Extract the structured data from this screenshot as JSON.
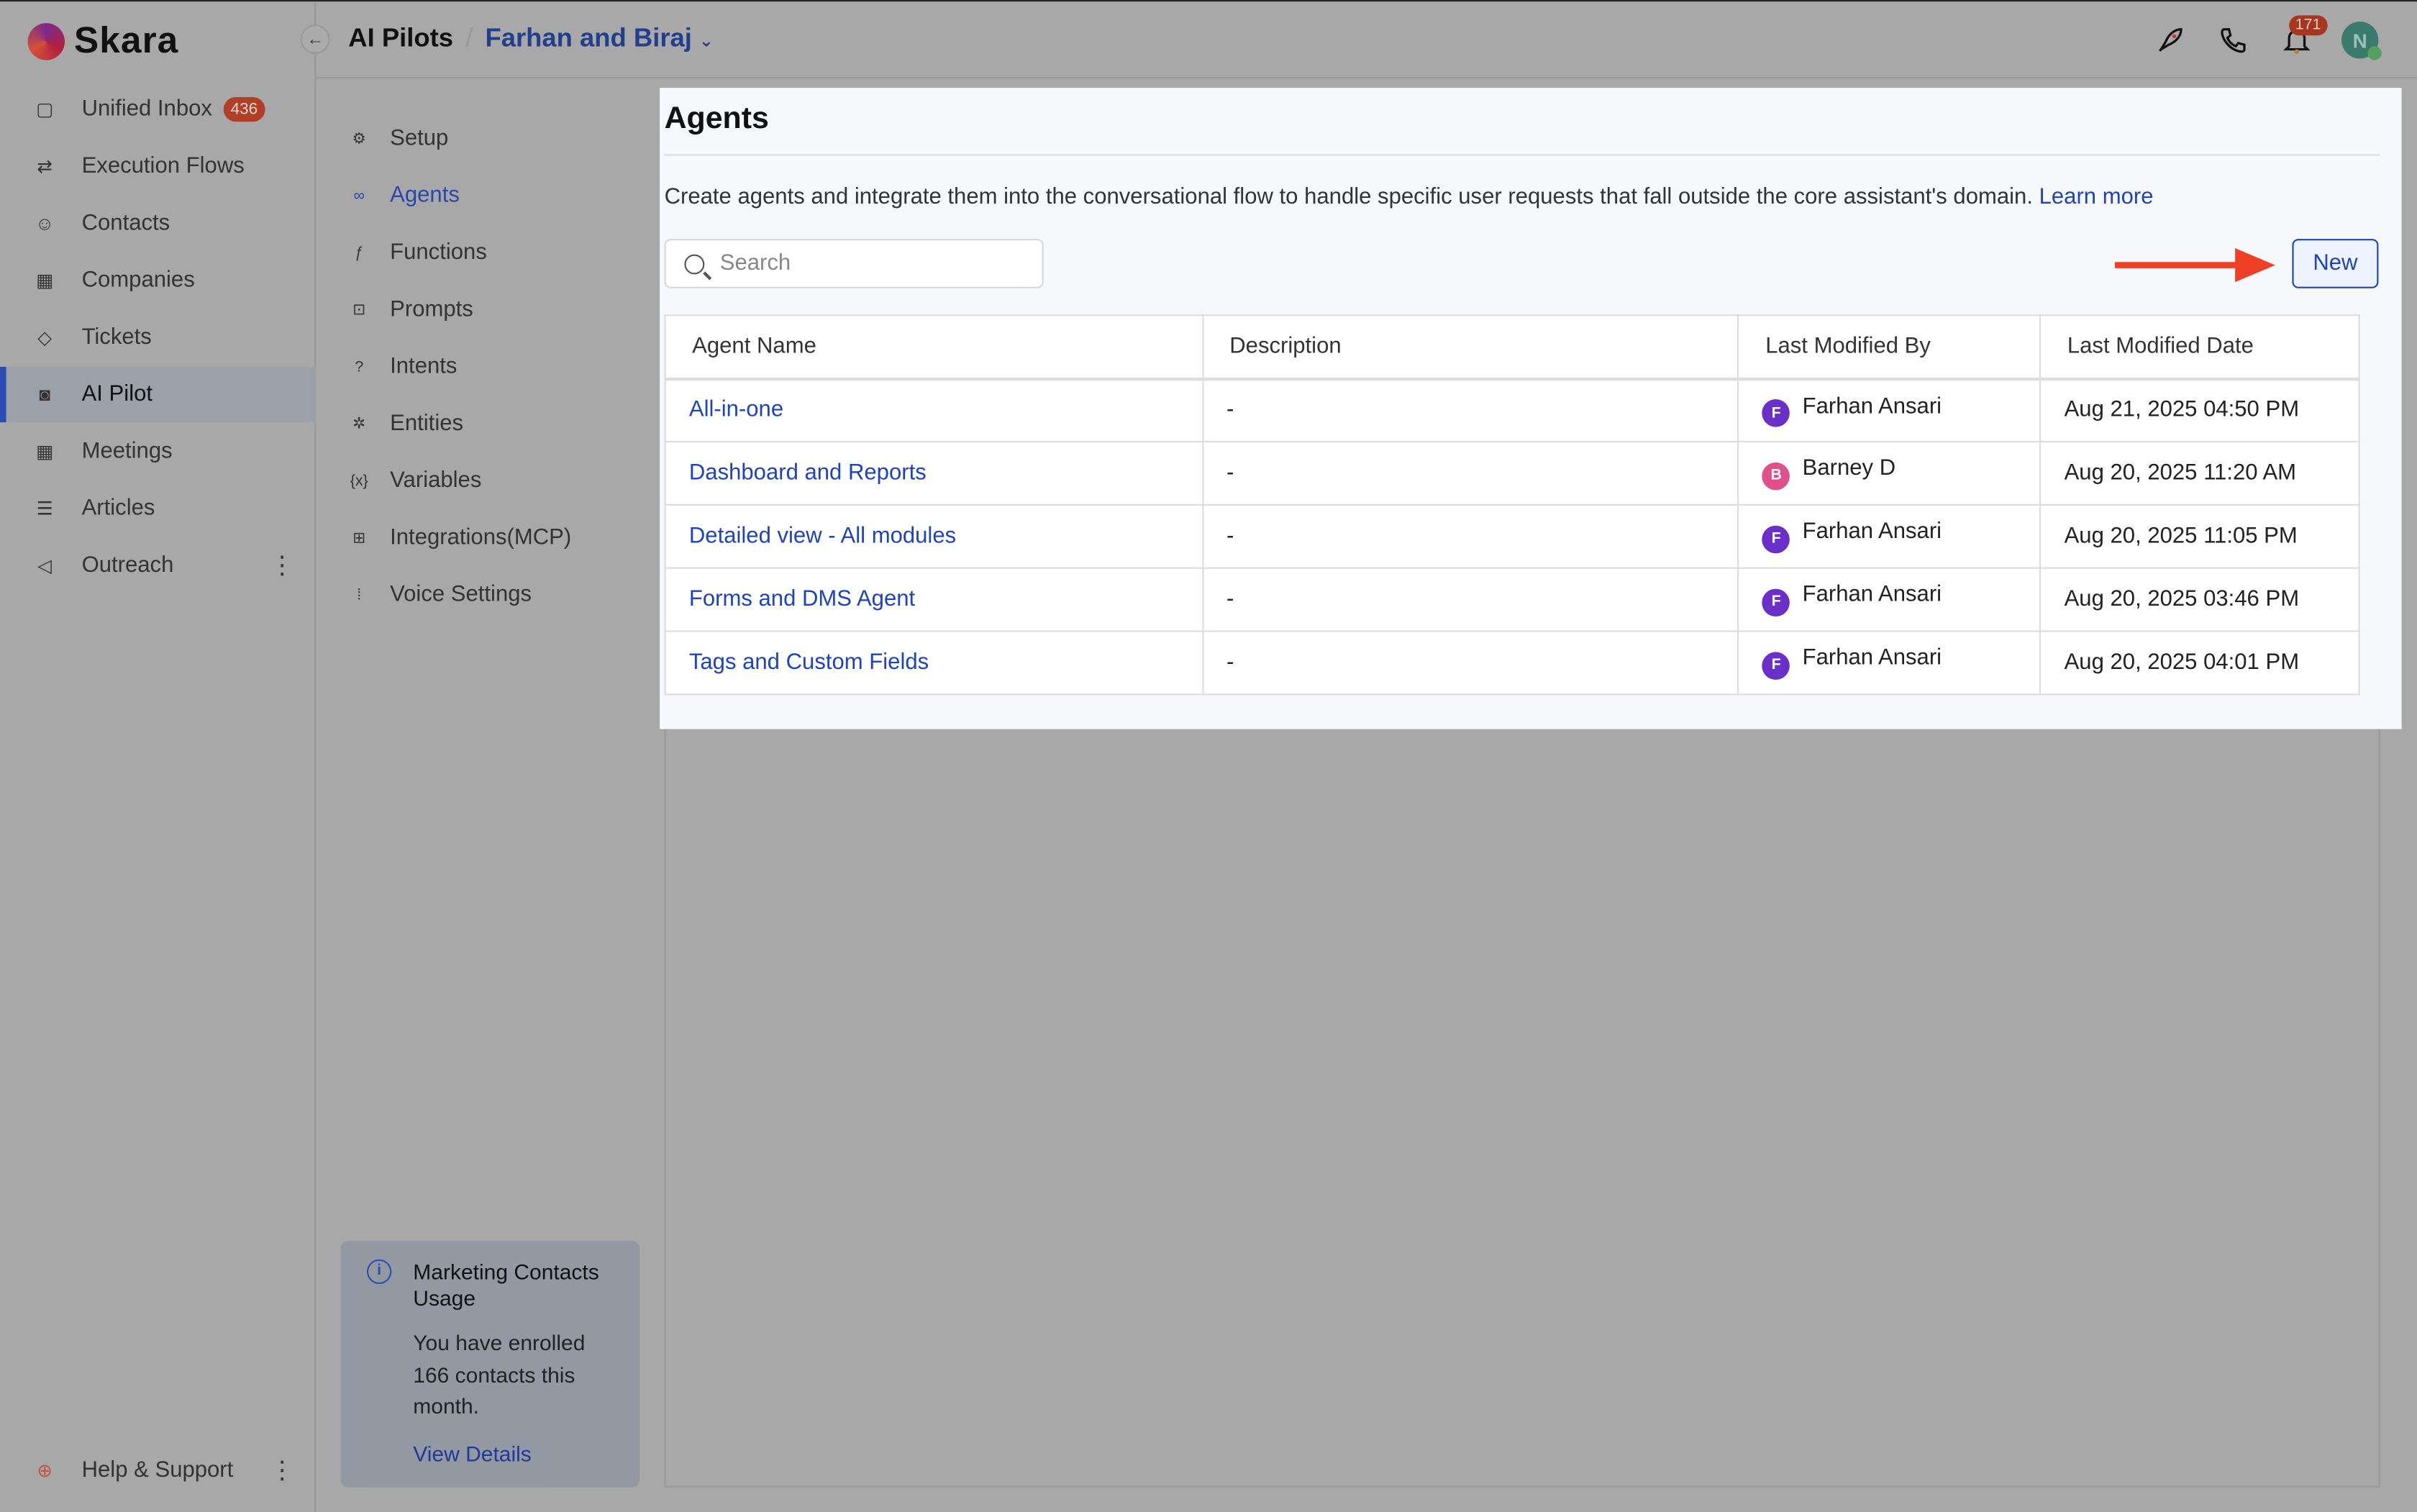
{
  "app": {
    "brand": "Skara"
  },
  "sidebar": {
    "items": [
      {
        "label": "Unified Inbox",
        "icon": "inbox-icon",
        "badge": "436"
      },
      {
        "label": "Execution Flows",
        "icon": "flows-icon"
      },
      {
        "label": "Contacts",
        "icon": "user-icon"
      },
      {
        "label": "Companies",
        "icon": "building-icon"
      },
      {
        "label": "Tickets",
        "icon": "ticket-icon"
      },
      {
        "label": "AI Pilot",
        "icon": "bot-icon",
        "active": true
      },
      {
        "label": "Meetings",
        "icon": "calendar-icon"
      },
      {
        "label": "Articles",
        "icon": "article-icon"
      },
      {
        "label": "Outreach",
        "icon": "megaphone-icon"
      }
    ],
    "help": "Help & Support"
  },
  "header": {
    "breadcrumb_root": "AI Pilots",
    "breadcrumb_current": "Farhan and Biraj",
    "notifications": "171",
    "avatar": "N"
  },
  "subnav": {
    "items": [
      {
        "label": "Setup",
        "icon": "gear-icon"
      },
      {
        "label": "Agents",
        "icon": "agent-icon",
        "active": true
      },
      {
        "label": "Functions",
        "icon": "function-icon"
      },
      {
        "label": "Prompts",
        "icon": "terminal-icon"
      },
      {
        "label": "Intents",
        "icon": "chat-question-icon"
      },
      {
        "label": "Entities",
        "icon": "atom-icon"
      },
      {
        "label": "Variables",
        "icon": "variable-icon"
      },
      {
        "label": "Integrations(MCP)",
        "icon": "integrations-icon"
      },
      {
        "label": "Voice Settings",
        "icon": "voice-icon"
      }
    ]
  },
  "usage_card": {
    "title": "Marketing Contacts Usage",
    "body": "You have enrolled 166 contacts this month.",
    "link": "View Details"
  },
  "main": {
    "title": "Agents",
    "description": "Create agents and integrate them into the conversational flow to handle specific user requests that fall outside the core assistant's domain.",
    "learn_more": "Learn more",
    "search_placeholder": "Search",
    "new_label": "New",
    "columns": [
      "Agent Name",
      "Description",
      "Last Modified By",
      "Last Modified Date"
    ],
    "rows": [
      {
        "name": "All-in-one",
        "description": "-",
        "by": "Farhan Ansari",
        "initial": "F",
        "color": "#6b2fc9",
        "date": "Aug 21, 2025 04:50 PM"
      },
      {
        "name": "Dashboard and Reports",
        "description": "-",
        "by": "Barney D",
        "initial": "B",
        "color": "#e0508a",
        "date": "Aug 20, 2025 11:20 AM"
      },
      {
        "name": "Detailed view - All modules",
        "description": "-",
        "by": "Farhan Ansari",
        "initial": "F",
        "color": "#6b2fc9",
        "date": "Aug 20, 2025 11:05 PM"
      },
      {
        "name": "Forms and DMS Agent",
        "description": "-",
        "by": "Farhan Ansari",
        "initial": "F",
        "color": "#6b2fc9",
        "date": "Aug 20, 2025 03:46 PM"
      },
      {
        "name": "Tags and Custom Fields",
        "description": "-",
        "by": "Farhan Ansari",
        "initial": "F",
        "color": "#6b2fc9",
        "date": "Aug 20, 2025 04:01 PM"
      }
    ]
  },
  "colors": {
    "accent": "#1f43b8",
    "badge": "#b03f25",
    "annotation_arrow": "#ee4025"
  }
}
